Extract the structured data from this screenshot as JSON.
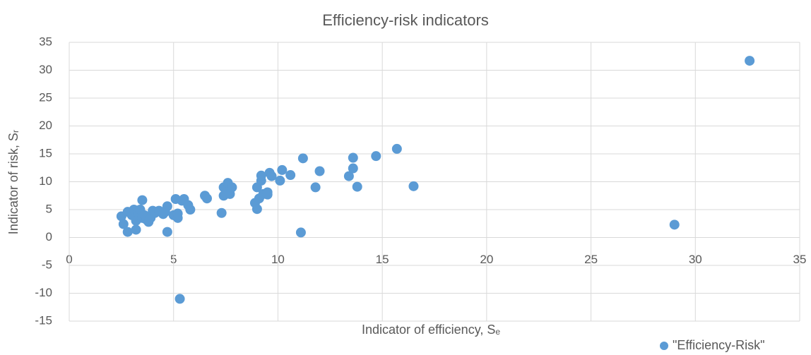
{
  "chart_data": {
    "type": "scatter",
    "title": "Efficiency-risk indicators",
    "x_label": "Indicator of efficiency, Sₑ",
    "y_label": "Indicator of risk, Sᵣ",
    "xlim": [
      0,
      35
    ],
    "xticks": [
      0,
      5,
      10,
      15,
      20,
      25,
      30,
      35
    ],
    "ylim": [
      -15,
      35
    ],
    "yticks": [
      -15,
      -10,
      -5,
      0,
      5,
      10,
      15,
      20,
      25,
      30,
      35
    ],
    "grid": true,
    "legend": "bottom-right",
    "series": [
      {
        "name": "\"Efficiency-Risk\"",
        "color": "#5b9bd5",
        "x": [
          2.5,
          2.6,
          2.8,
          2.8,
          3.0,
          3.1,
          3.2,
          3.2,
          3.3,
          3.4,
          3.5,
          3.5,
          3.6,
          3.7,
          3.8,
          3.9,
          4.0,
          4.1,
          4.3,
          4.5,
          4.6,
          4.7,
          4.7,
          5.0,
          5.1,
          5.2,
          5.2,
          5.3,
          5.4,
          5.5,
          5.7,
          5.8,
          6.5,
          6.6,
          7.3,
          7.4,
          7.4,
          7.6,
          7.7,
          7.8,
          8.9,
          9.0,
          9.0,
          9.1,
          9.2,
          9.2,
          9.3,
          9.5,
          9.5,
          9.6,
          9.7,
          10.1,
          10.2,
          10.6,
          11.1,
          11.2,
          11.8,
          12.0,
          13.4,
          13.6,
          13.6,
          13.8,
          14.7,
          15.7,
          16.5,
          29.0,
          32.6
        ],
        "values": [
          3.8,
          2.4,
          4.6,
          1.0,
          4.0,
          5.0,
          1.4,
          3.0,
          4.5,
          5.0,
          6.7,
          3.5,
          4.0,
          3.2,
          2.8,
          3.5,
          4.8,
          4.4,
          4.8,
          4.2,
          4.6,
          5.6,
          1.0,
          4.0,
          6.9,
          3.5,
          4.3,
          -11.0,
          6.6,
          6.9,
          5.8,
          5.0,
          7.5,
          7.0,
          4.4,
          9.0,
          7.5,
          9.8,
          7.8,
          9.0,
          6.2,
          9.0,
          5.1,
          7.0,
          11.1,
          10.2,
          7.8,
          8.1,
          7.7,
          11.6,
          11.0,
          10.2,
          12.1,
          11.2,
          0.9,
          14.2,
          9.0,
          11.9,
          11.0,
          14.3,
          12.4,
          9.1,
          14.6,
          15.9,
          9.2,
          2.3,
          31.7
        ]
      }
    ]
  }
}
